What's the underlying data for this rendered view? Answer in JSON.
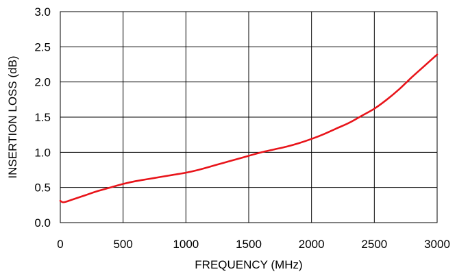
{
  "chart_data": {
    "type": "line",
    "title": "",
    "xlabel": "FREQUENCY (MHz)",
    "ylabel": "INSERTION LOSS (dB)",
    "xlim": [
      0,
      3000
    ],
    "ylim": [
      0,
      3.0
    ],
    "x_ticks": [
      0,
      500,
      1000,
      1500,
      2000,
      2500,
      3000
    ],
    "y_ticks": [
      0.0,
      0.5,
      1.0,
      1.5,
      2.0,
      2.5,
      3.0
    ],
    "x_tick_labels": [
      "0",
      "500",
      "1000",
      "1500",
      "2000",
      "2500",
      "3000"
    ],
    "y_tick_labels": [
      "0.0",
      "0.5",
      "1.0",
      "1.5",
      "2.0",
      "2.5",
      "3.0"
    ],
    "grid": true,
    "legend": "none",
    "series": [
      {
        "color": "#e8141a",
        "x": [
          0,
          20,
          50,
          100,
          200,
          300,
          400,
          500,
          600,
          700,
          800,
          900,
          1000,
          1100,
          1200,
          1300,
          1400,
          1500,
          1600,
          1700,
          1800,
          1900,
          2000,
          2100,
          2200,
          2300,
          2400,
          2500,
          2600,
          2700,
          2800,
          2900,
          3000
        ],
        "y": [
          0.31,
          0.29,
          0.3,
          0.33,
          0.39,
          0.45,
          0.5,
          0.55,
          0.59,
          0.62,
          0.65,
          0.68,
          0.71,
          0.75,
          0.8,
          0.85,
          0.9,
          0.95,
          1.0,
          1.04,
          1.08,
          1.13,
          1.19,
          1.26,
          1.34,
          1.42,
          1.52,
          1.62,
          1.75,
          1.9,
          2.07,
          2.23,
          2.39
        ]
      }
    ]
  }
}
